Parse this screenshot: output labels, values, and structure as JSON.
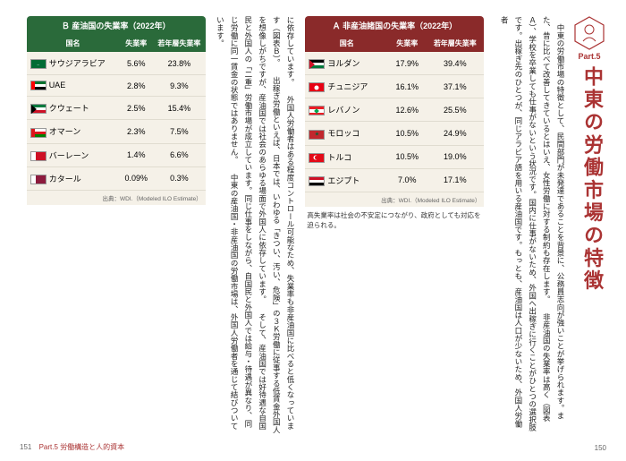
{
  "part": {
    "label": "Part.5"
  },
  "headline": "中東の労働市場の特徴",
  "right_text": "　中東の労働市場の特徴として、民間部門が未発達であることを背景に、公務員志向が強いことが挙げられます。また、昔に比べて改善してきているとはいえ、女性労働に対する制約も存在します。\n　非産油国の失業率は高く（図表Ａ）、学校を卒業しても仕事がないという状況です。国内に仕事がないため、外国へ出稼ぎに行くことがひとつの選択肢です。出稼ぎ先のひとつが、同じアラビア語を用いる産油国です。もっとも、産油国は人口が少ないため、外国人労働者",
  "left_text": "に依存しています。\n　外国人労働者はある程度コントロール可能なため、失業率も非産油国に比べると低くなっています（図表Ｂ）。\n　出稼ぎ労働といえば、日本では、いわゆる「きつい、汚い、危険」の３Ｋ労働に従事する低賃金外国人を想像しがちですが、産油国では社会のあらゆる場面で外国人に依存しています。\n　そして、産油国では好待遇な自国民と外国人の「二重」労働市場が成立しています。同じ仕事をしながら、自国民と外国人では給与・待遇が異なり、同じ労働に同一賃金の状態ではありません。\n　中東の産油国・非産油国の労働市場は、外国人労働者を通じて結びついています。",
  "table_a": {
    "caption": "Ａ 非産油諸国の失業率（2022年）",
    "headers": [
      "国名",
      "失業率",
      "若年層失業率"
    ],
    "rows": [
      {
        "country": "ヨルダン",
        "ur": "17.9%",
        "yur": "39.4%",
        "flag": "jordan"
      },
      {
        "country": "チュニジア",
        "ur": "16.1%",
        "yur": "37.1%",
        "flag": "tunisia"
      },
      {
        "country": "レバノン",
        "ur": "12.6%",
        "yur": "25.5%",
        "flag": "lebanon"
      },
      {
        "country": "モロッコ",
        "ur": "10.5%",
        "yur": "24.9%",
        "flag": "morocco"
      },
      {
        "country": "トルコ",
        "ur": "10.5%",
        "yur": "19.0%",
        "flag": "turkey"
      },
      {
        "country": "エジプト",
        "ur": "7.0%",
        "yur": "17.1%",
        "flag": "egypt"
      }
    ],
    "source": "出典：WDI.（Modeled ILO Estimate）",
    "note": "高失業率は社会の不安定につながり、政府としても対応を迫られる。"
  },
  "table_b": {
    "caption": "Ｂ 産油国の失業率（2022年）",
    "headers": [
      "国名",
      "失業率",
      "若年層失業率"
    ],
    "rows": [
      {
        "country": "サウジアラビア",
        "ur": "5.6%",
        "yur": "23.8%",
        "flag": "saudi"
      },
      {
        "country": "UAE",
        "ur": "2.8%",
        "yur": "9.3%",
        "flag": "uae"
      },
      {
        "country": "クウェート",
        "ur": "2.5%",
        "yur": "15.4%",
        "flag": "kuwait"
      },
      {
        "country": "オマーン",
        "ur": "2.3%",
        "yur": "7.5%",
        "flag": "oman"
      },
      {
        "country": "バーレーン",
        "ur": "1.4%",
        "yur": "6.6%",
        "flag": "bahrain"
      },
      {
        "country": "カタール",
        "ur": "0.09%",
        "yur": "0.3%",
        "flag": "qatar"
      }
    ],
    "source": "出典：WDI.（Modeled ILO Estimate）"
  },
  "page_left_num": "151",
  "page_left_section": "Part.5 労働構造と人的資本",
  "page_right_num": "150",
  "flags": {
    "jordan": {
      "type": "h3tri",
      "c": [
        "#000",
        "#fff",
        "#007a3d"
      ],
      "tri": "#ce1126"
    },
    "tunisia": {
      "type": "solid",
      "bg": "#e70013",
      "circle": "#fff"
    },
    "lebanon": {
      "type": "h3",
      "c": [
        "#ed1c24",
        "#fff",
        "#ed1c24"
      ],
      "mid_wide": true,
      "tree": "#00a651"
    },
    "morocco": {
      "type": "solid",
      "bg": "#c1272d",
      "star": "#006233"
    },
    "turkey": {
      "type": "solid",
      "bg": "#e30a17",
      "cres": "#fff"
    },
    "egypt": {
      "type": "h3",
      "c": [
        "#ce1126",
        "#fff",
        "#000"
      ]
    },
    "saudi": {
      "type": "solid",
      "bg": "#006c35",
      "text": "#fff"
    },
    "uae": {
      "type": "uae"
    },
    "kuwait": {
      "type": "h3tri",
      "c": [
        "#007a3d",
        "#fff",
        "#ce1126"
      ],
      "tri": "#000"
    },
    "oman": {
      "type": "oman"
    },
    "bahrain": {
      "type": "bahrain"
    },
    "qatar": {
      "type": "qatar"
    }
  }
}
